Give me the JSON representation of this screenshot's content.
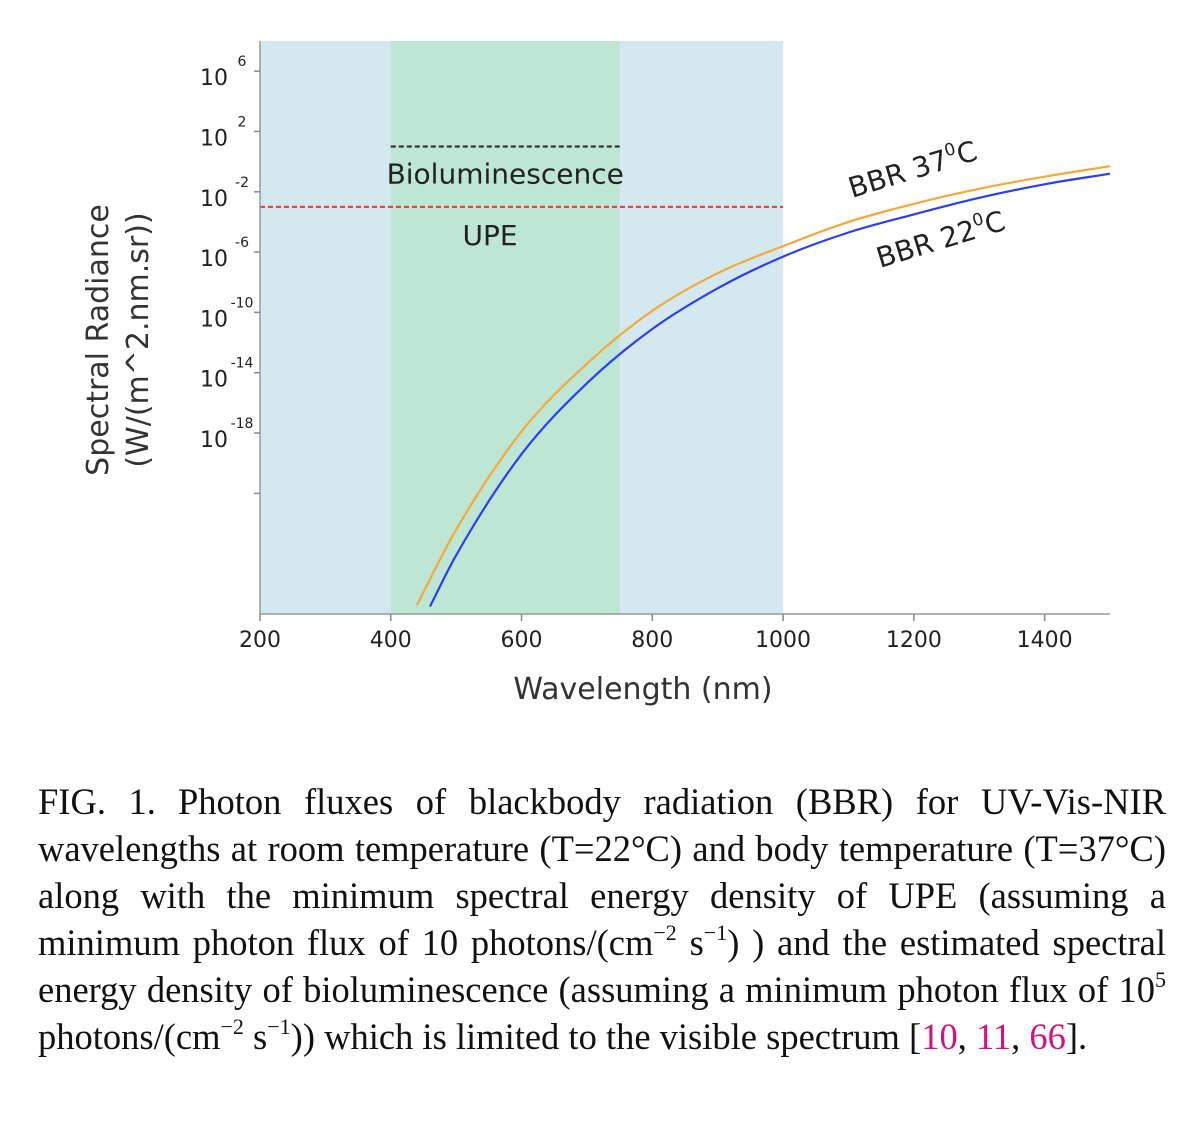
{
  "chart_data": {
    "type": "line",
    "xlabel": "Wavelength (nm)",
    "ylabel_line1": "Spectral Radiance",
    "ylabel_line2": "(W/(m^2.nm.sr))",
    "xlim": [
      200,
      1500
    ],
    "x_ticks": [
      200,
      400,
      600,
      800,
      1000,
      1200,
      1400
    ],
    "ylog_range": [
      -30,
      8
    ],
    "y_ticks": [
      {
        "base": "10",
        "exp": "6",
        "value_log": 6
      },
      {
        "base": "10",
        "exp": "2",
        "value_log": 2
      },
      {
        "base": "10",
        "exp": "-2",
        "value_log": -2
      },
      {
        "base": "10",
        "exp": "-6",
        "value_log": -6
      },
      {
        "base": "10",
        "exp": "-10",
        "value_log": -10
      },
      {
        "base": "10",
        "exp": "-14",
        "value_log": -14
      },
      {
        "base": "10",
        "exp": "-18",
        "value_log": -18
      }
    ],
    "regions": [
      {
        "x0": 200,
        "x1": 1000,
        "color": "#d3e9ef"
      },
      {
        "x0": 400,
        "x1": 750,
        "color": "#bde6d5"
      }
    ],
    "reference_lines": [
      {
        "label": "Bioluminescence",
        "y_log": 1,
        "x0": 400,
        "x1": 750,
        "color": "#222222",
        "style": "dashed"
      },
      {
        "label": "UPE",
        "y_log": -3,
        "x0": 200,
        "x1": 1000,
        "color": "#d93a3a",
        "style": "dashed"
      }
    ],
    "series": [
      {
        "name": "BBR 37",
        "name_sup": "0",
        "name_suffix": "C",
        "color": "#f5a83a",
        "x": [
          440,
          500,
          600,
          700,
          800,
          900,
          1000,
          1100,
          1200,
          1300,
          1400,
          1500
        ],
        "y_log": [
          -29.4,
          -24.4,
          -17.9,
          -13.4,
          -9.9,
          -7.4,
          -5.6,
          -4.0,
          -2.8,
          -1.8,
          -1.0,
          -0.3
        ]
      },
      {
        "name": "BBR 22",
        "name_sup": "0",
        "name_suffix": "C",
        "color": "#2a3ff0",
        "x": [
          460,
          500,
          600,
          700,
          800,
          900,
          1000,
          1100,
          1200,
          1300,
          1400,
          1500
        ],
        "y_log": [
          -29.5,
          -26.1,
          -19.4,
          -14.7,
          -11.1,
          -8.4,
          -6.3,
          -4.7,
          -3.5,
          -2.4,
          -1.5,
          -0.8
        ]
      }
    ]
  },
  "caption": {
    "fig_label": "FIG. 1.",
    "part1": "Photon fluxes of blackbody radiation (BBR) for UV-Vis-NIR wavelengths at room temperature (T=22°C) and body temperature (T=37°C) along with the minimum spectral energy density of UPE (assuming a minimum photon flux of 10 photons/(cm",
    "sup1": "−2",
    "part2": " s",
    "sup2": "−1",
    "part3": ") ) and the estimated spectral energy density of bioluminescence (assuming a minimum photon flux of 10",
    "sup3": "5",
    "part4": " photons/(cm",
    "sup4": "−2",
    "part5": " s",
    "sup5": "−1",
    "part6": ")) which is limited to the visible spectrum [",
    "ref1": "10",
    "sep1": ", ",
    "ref2": "11",
    "sep2": ", ",
    "ref3": "66",
    "end": "]."
  }
}
